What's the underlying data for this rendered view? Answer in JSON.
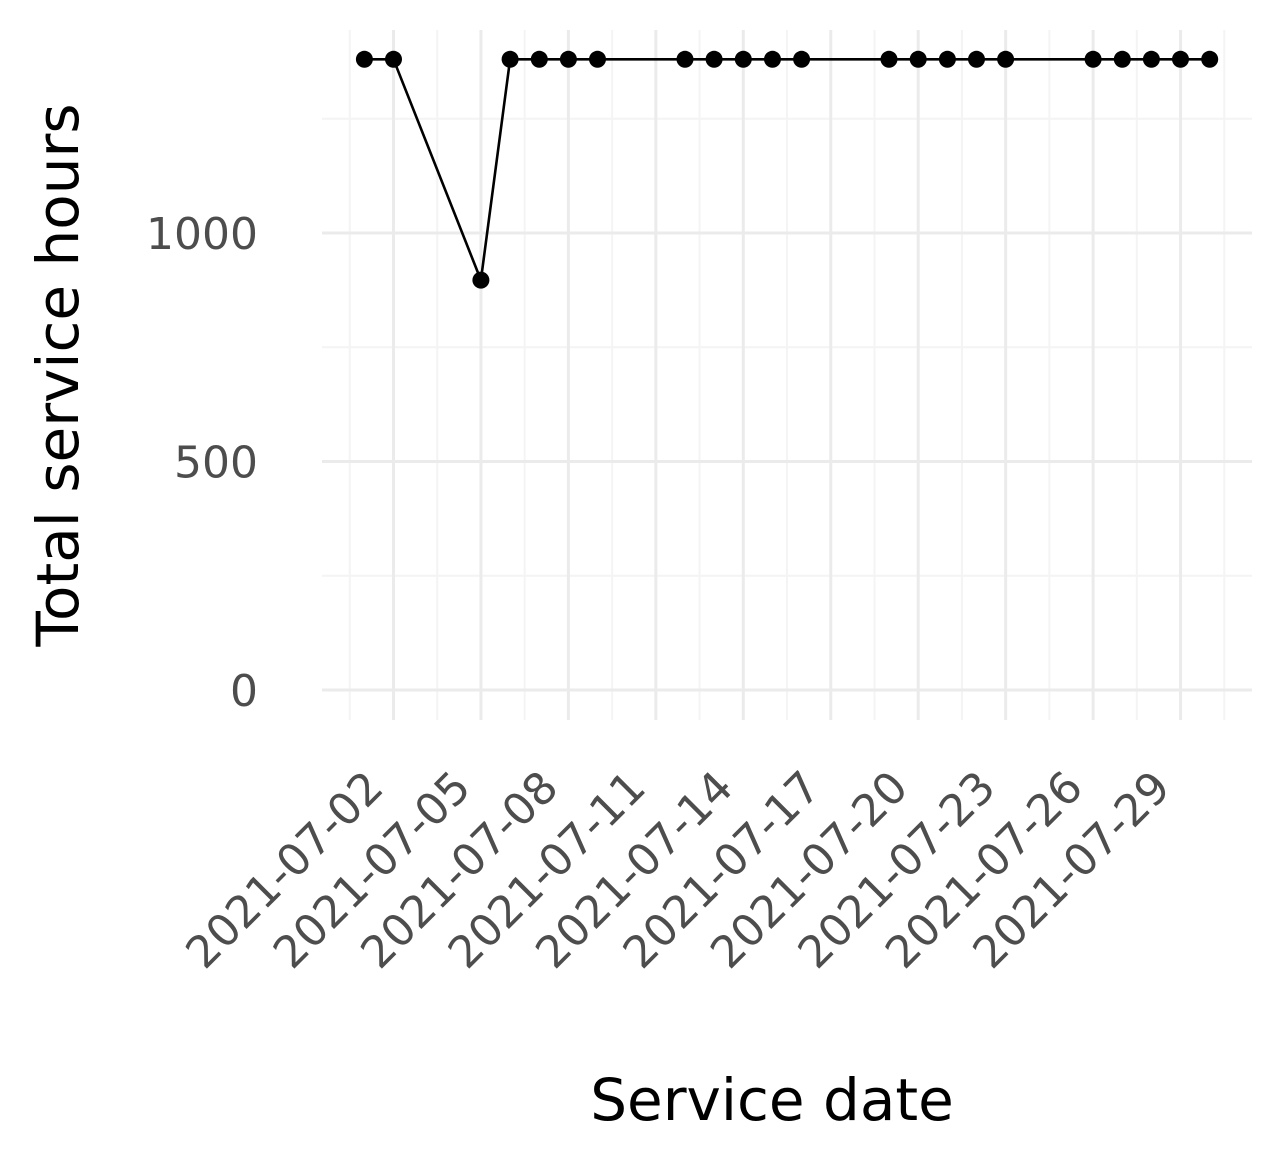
{
  "chart_data": {
    "type": "line",
    "title": "",
    "xlabel": "Service date",
    "ylabel": "Total service hours",
    "x_ticks": [
      "2021-07-02",
      "2021-07-05",
      "2021-07-08",
      "2021-07-11",
      "2021-07-14",
      "2021-07-17",
      "2021-07-20",
      "2021-07-23",
      "2021-07-26",
      "2021-07-29"
    ],
    "y_ticks": [
      "0",
      "500",
      "1000"
    ],
    "ylim": [
      0,
      1380
    ],
    "xlim": [
      "2021-06-30",
      "2021-08-01"
    ],
    "grid": true,
    "legend": "none",
    "series": [
      {
        "points": [
          {
            "x": "2021-07-01",
            "y": 1380
          },
          {
            "x": "2021-07-02",
            "y": 1380
          },
          {
            "x": "2021-07-05",
            "y": 897
          },
          {
            "x": "2021-07-06",
            "y": 1380
          },
          {
            "x": "2021-07-07",
            "y": 1380
          },
          {
            "x": "2021-07-08",
            "y": 1380
          },
          {
            "x": "2021-07-09",
            "y": 1380
          },
          {
            "x": "2021-07-12",
            "y": 1380
          },
          {
            "x": "2021-07-13",
            "y": 1380
          },
          {
            "x": "2021-07-14",
            "y": 1380
          },
          {
            "x": "2021-07-15",
            "y": 1380
          },
          {
            "x": "2021-07-16",
            "y": 1380
          },
          {
            "x": "2021-07-19",
            "y": 1380
          },
          {
            "x": "2021-07-20",
            "y": 1380
          },
          {
            "x": "2021-07-21",
            "y": 1380
          },
          {
            "x": "2021-07-22",
            "y": 1380
          },
          {
            "x": "2021-07-23",
            "y": 1380
          },
          {
            "x": "2021-07-26",
            "y": 1380
          },
          {
            "x": "2021-07-27",
            "y": 1380
          },
          {
            "x": "2021-07-28",
            "y": 1380
          },
          {
            "x": "2021-07-29",
            "y": 1380
          },
          {
            "x": "2021-07-30",
            "y": 1380
          }
        ],
        "color": "#000000"
      }
    ]
  }
}
